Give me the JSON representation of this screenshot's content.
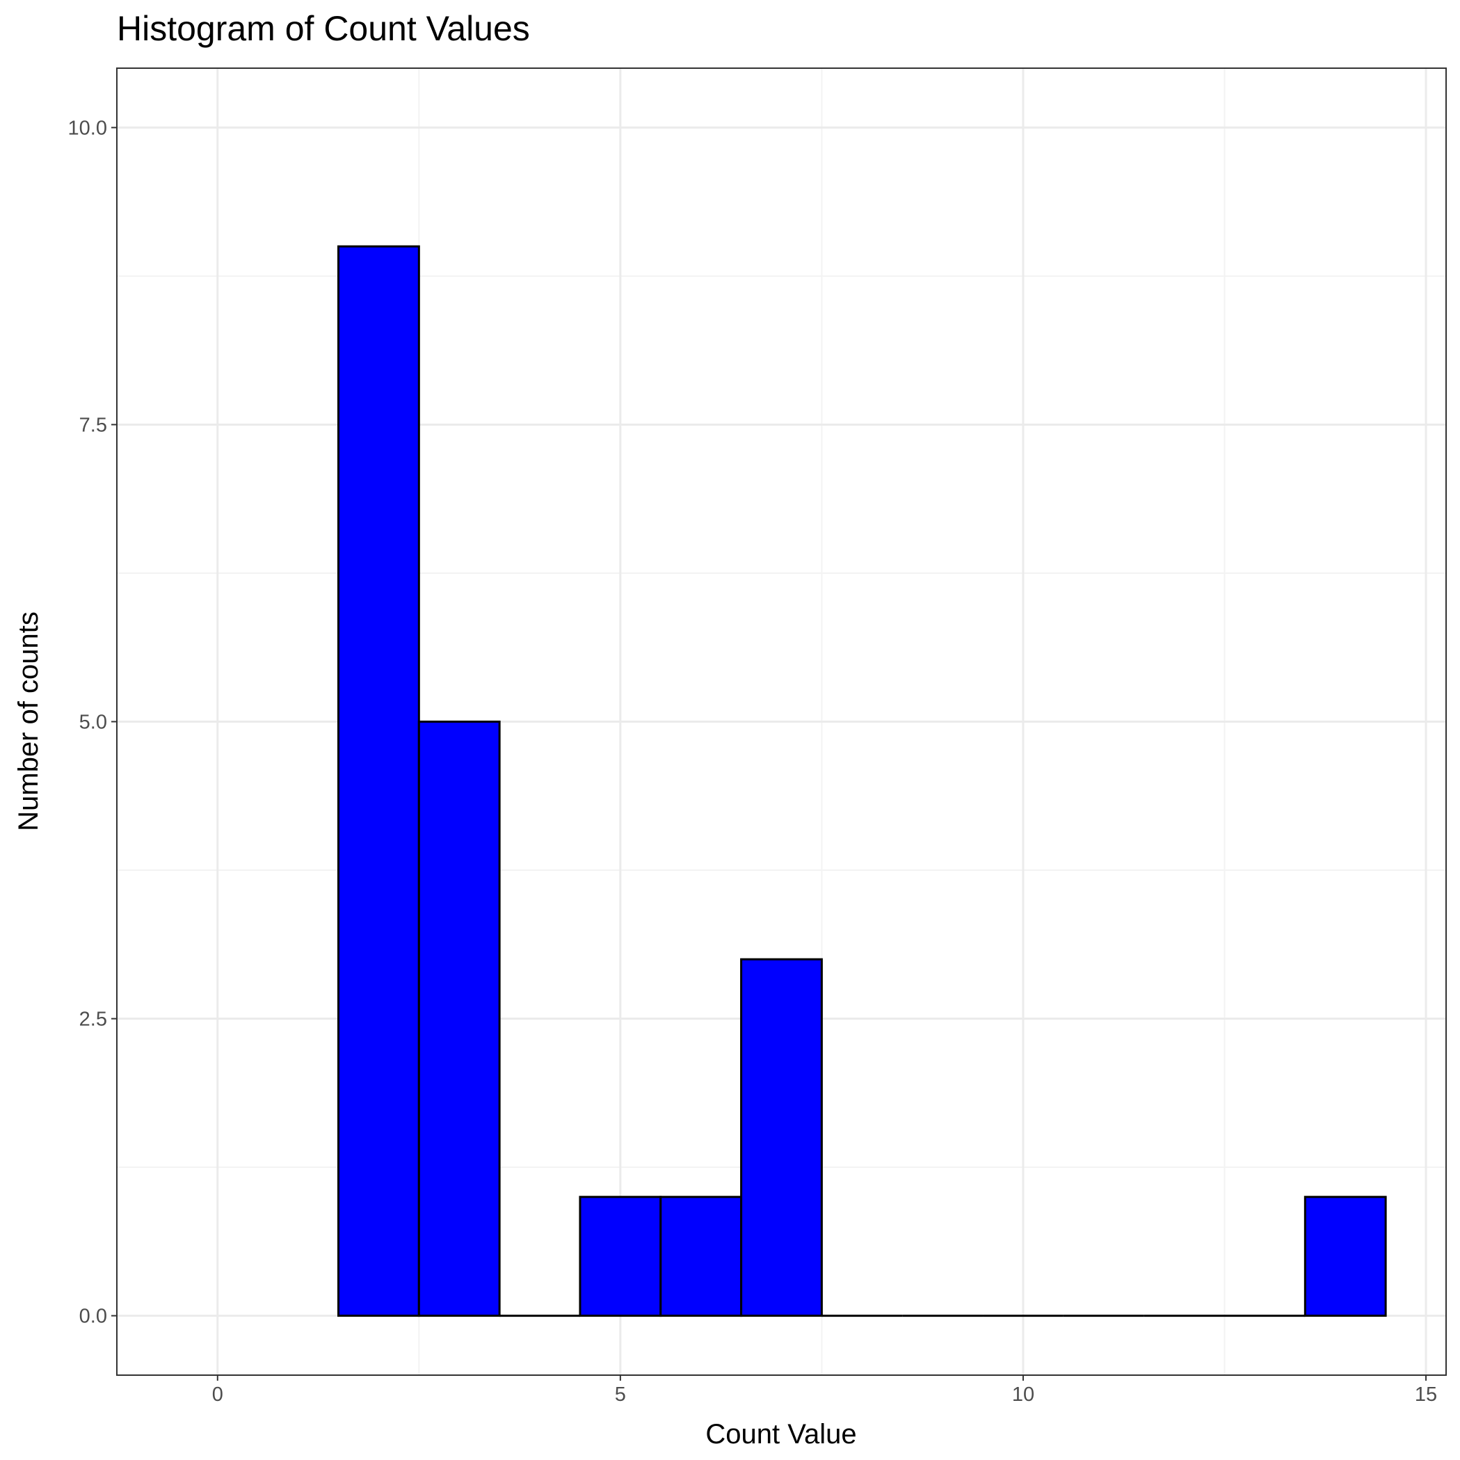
{
  "chart_data": {
    "type": "bar",
    "subtype": "histogram",
    "title": "Histogram of Count Values",
    "xlabel": "Count Value",
    "ylabel": "Number of counts",
    "xlim": [
      -1.25,
      15.25
    ],
    "ylim": [
      -0.5,
      10.5
    ],
    "xticks": [
      0,
      5,
      10,
      15
    ],
    "xtick_labels": [
      "0",
      "5",
      "10",
      "15"
    ],
    "yticks": [
      0,
      2.5,
      5,
      7.5,
      10
    ],
    "ytick_labels": [
      "0.0",
      "2.5",
      "5.0",
      "7.5",
      "10.0"
    ],
    "bin_width": 1,
    "bins": [
      {
        "x0": 1.5,
        "x1": 2.5,
        "count": 9
      },
      {
        "x0": 2.5,
        "x1": 3.5,
        "count": 5
      },
      {
        "x0": 3.5,
        "x1": 4.5,
        "count": 0
      },
      {
        "x0": 4.5,
        "x1": 5.5,
        "count": 1
      },
      {
        "x0": 5.5,
        "x1": 6.5,
        "count": 1
      },
      {
        "x0": 6.5,
        "x1": 7.5,
        "count": 3
      },
      {
        "x0": 7.5,
        "x1": 8.5,
        "count": 0
      },
      {
        "x0": 8.5,
        "x1": 9.5,
        "count": 0
      },
      {
        "x0": 9.5,
        "x1": 10.5,
        "count": 0
      },
      {
        "x0": 10.5,
        "x1": 11.5,
        "count": 0
      },
      {
        "x0": 11.5,
        "x1": 12.5,
        "count": 0
      },
      {
        "x0": 12.5,
        "x1": 13.5,
        "count": 0
      },
      {
        "x0": 13.5,
        "x1": 14.5,
        "count": 1
      }
    ],
    "grid": true,
    "legend": "none",
    "colors": {
      "bar_fill": "#0000ff",
      "bar_outline": "#000000",
      "grid_major": "#ebebeb",
      "grid_minor": "#f3f3f3",
      "panel_border": "#333333",
      "tick_text": "#4d4d4d"
    }
  }
}
